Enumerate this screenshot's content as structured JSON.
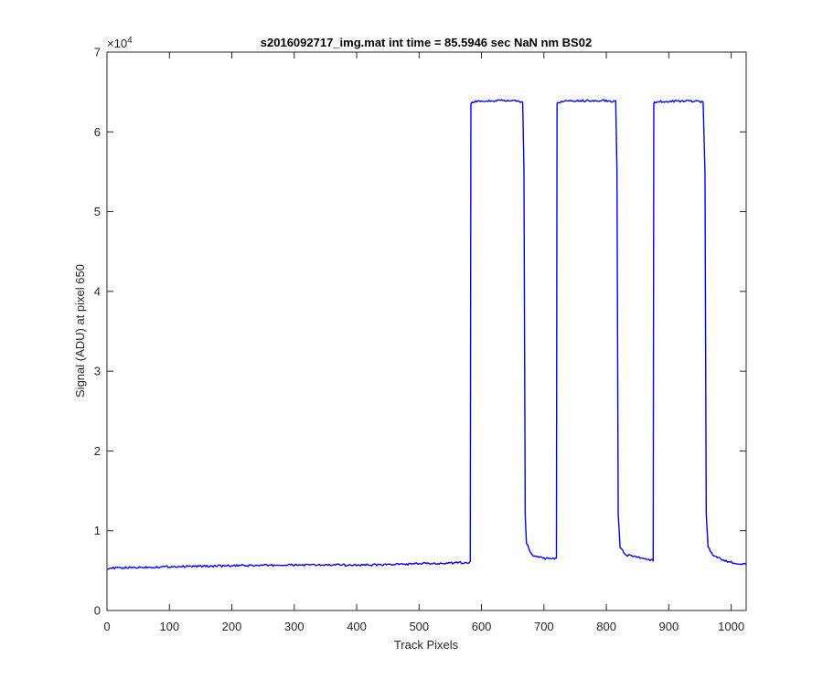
{
  "chart_data": {
    "type": "line",
    "title": "s2016092717_img.mat int time = 85.5946 sec  NaN nm BS02",
    "xlabel": "Track Pixels",
    "ylabel": "Signal (ADU) at pixel 650",
    "xlim": [
      0,
      1024
    ],
    "ylim": [
      0,
      70000
    ],
    "x_ticks": [
      0,
      100,
      200,
      300,
      400,
      500,
      600,
      700,
      800,
      900,
      1000
    ],
    "y_ticks": [
      0,
      1,
      2,
      3,
      4,
      5,
      6,
      7
    ],
    "y_exponent_label": "×10",
    "y_exponent_power": "4",
    "grid": false,
    "series_color": "#0000ff",
    "series": [
      {
        "x": [
          0,
          50,
          100,
          150,
          200,
          250,
          300,
          350,
          400,
          450,
          500,
          550,
          580,
          582,
          583,
          590,
          620,
          650,
          666,
          668,
          670,
          672,
          680,
          700,
          719,
          720,
          721,
          722,
          730,
          760,
          790,
          815,
          817,
          819,
          822,
          830,
          850,
          874,
          875,
          876,
          877,
          885,
          920,
          955,
          958,
          960,
          963,
          970,
          990,
          1010,
          1024
        ],
        "y": [
          5300,
          5400,
          5500,
          5550,
          5600,
          5650,
          5700,
          5700,
          5700,
          5750,
          5850,
          5950,
          6000,
          6200,
          63600,
          63800,
          63900,
          63900,
          63700,
          55000,
          12000,
          8500,
          7000,
          6500,
          6500,
          6500,
          63500,
          63700,
          63800,
          63900,
          63950,
          63800,
          55000,
          12000,
          8000,
          7000,
          6700,
          6300,
          6300,
          63500,
          63700,
          63800,
          63850,
          63800,
          55000,
          12000,
          8000,
          7000,
          6200,
          5900,
          5800
        ]
      }
    ]
  }
}
